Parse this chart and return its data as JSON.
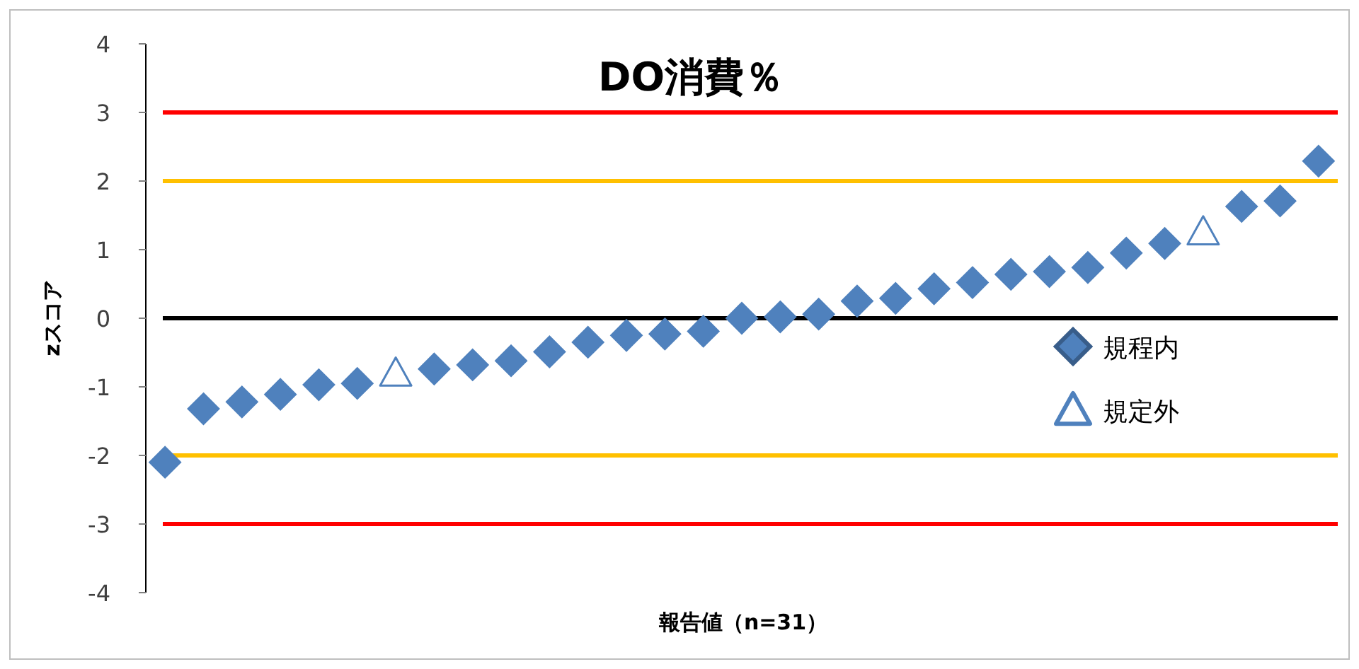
{
  "chart_data": {
    "type": "scatter",
    "title": "DO消費％",
    "xlabel": "報告値（n=31）",
    "ylabel": "zスコア",
    "categories": [
      null,
      null,
      null,
      null,
      null,
      null,
      null,
      null,
      null,
      null,
      null,
      null,
      null,
      null,
      null,
      null,
      null,
      null,
      null,
      null,
      null,
      null,
      null,
      null,
      null,
      null,
      null,
      null,
      null,
      null,
      null
    ],
    "series": [
      {
        "name": "規程内",
        "color": "#4f81bd",
        "marker": "diamond",
        "values": [
          -2.1,
          -1.32,
          -1.22,
          -1.11,
          -0.97,
          -0.95,
          null,
          -0.74,
          -0.68,
          -0.62,
          -0.49,
          -0.35,
          -0.25,
          -0.23,
          -0.19,
          0.0,
          0.02,
          0.06,
          0.25,
          0.29,
          0.43,
          0.52,
          0.64,
          0.68,
          0.74,
          0.95,
          1.09,
          null,
          1.63,
          1.71,
          2.29
        ]
      },
      {
        "name": "規定外",
        "color": "#4f81bd",
        "marker": "triangle",
        "values": [
          null,
          null,
          null,
          null,
          null,
          null,
          -0.8,
          null,
          null,
          null,
          null,
          null,
          null,
          null,
          null,
          null,
          null,
          null,
          null,
          null,
          null,
          null,
          null,
          null,
          null,
          null,
          null,
          1.26,
          null,
          null,
          null
        ]
      }
    ],
    "ylim": [
      -4,
      4
    ],
    "yticks": [
      -4,
      -3,
      -2,
      -1,
      0,
      1,
      2,
      3,
      4
    ],
    "tick_labels": "y",
    "grid": false,
    "legend": "right",
    "ref_lines": [
      {
        "axis": "y",
        "value": 3,
        "color": "#ff0000"
      },
      {
        "axis": "y",
        "value": 2,
        "color": "#ffc000"
      },
      {
        "axis": "y",
        "value": 0,
        "color": "#000000"
      },
      {
        "axis": "y",
        "value": -2,
        "color": "#ffc000"
      },
      {
        "axis": "y",
        "value": -3,
        "color": "#ff0000"
      }
    ]
  }
}
